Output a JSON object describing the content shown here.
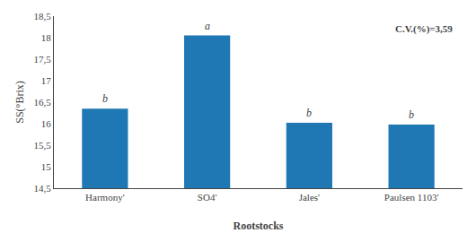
{
  "chart_data": {
    "type": "bar",
    "categories": [
      "Harmony'",
      "SO4'",
      "Jales'",
      "Paulsen 1103'"
    ],
    "values": [
      16.35,
      18.05,
      16.02,
      15.98
    ],
    "xlabel": "Rootstocks",
    "ylabel": "SS(°Brix)",
    "ylim": [
      14.5,
      18.5
    ],
    "yticks": [
      {
        "value": 14.5,
        "label": "14,5"
      },
      15,
      {
        "value": 15.5,
        "label": "15,5"
      },
      16,
      {
        "value": 16.5,
        "label": "16,5"
      },
      17,
      {
        "value": 17.5,
        "label": "17,5"
      },
      18,
      {
        "value": 18.5,
        "label": "18,5"
      }
    ],
    "annotations": [
      {
        "category": "Harmony'",
        "text": "b"
      },
      {
        "category": "SO4'",
        "text": "a"
      },
      {
        "category": "Jales'",
        "text": "b"
      },
      {
        "category": "Paulsen 1103'",
        "text": "b"
      },
      {
        "text": "C.V.(%)=3,59"
      }
    ],
    "grid": false
  }
}
